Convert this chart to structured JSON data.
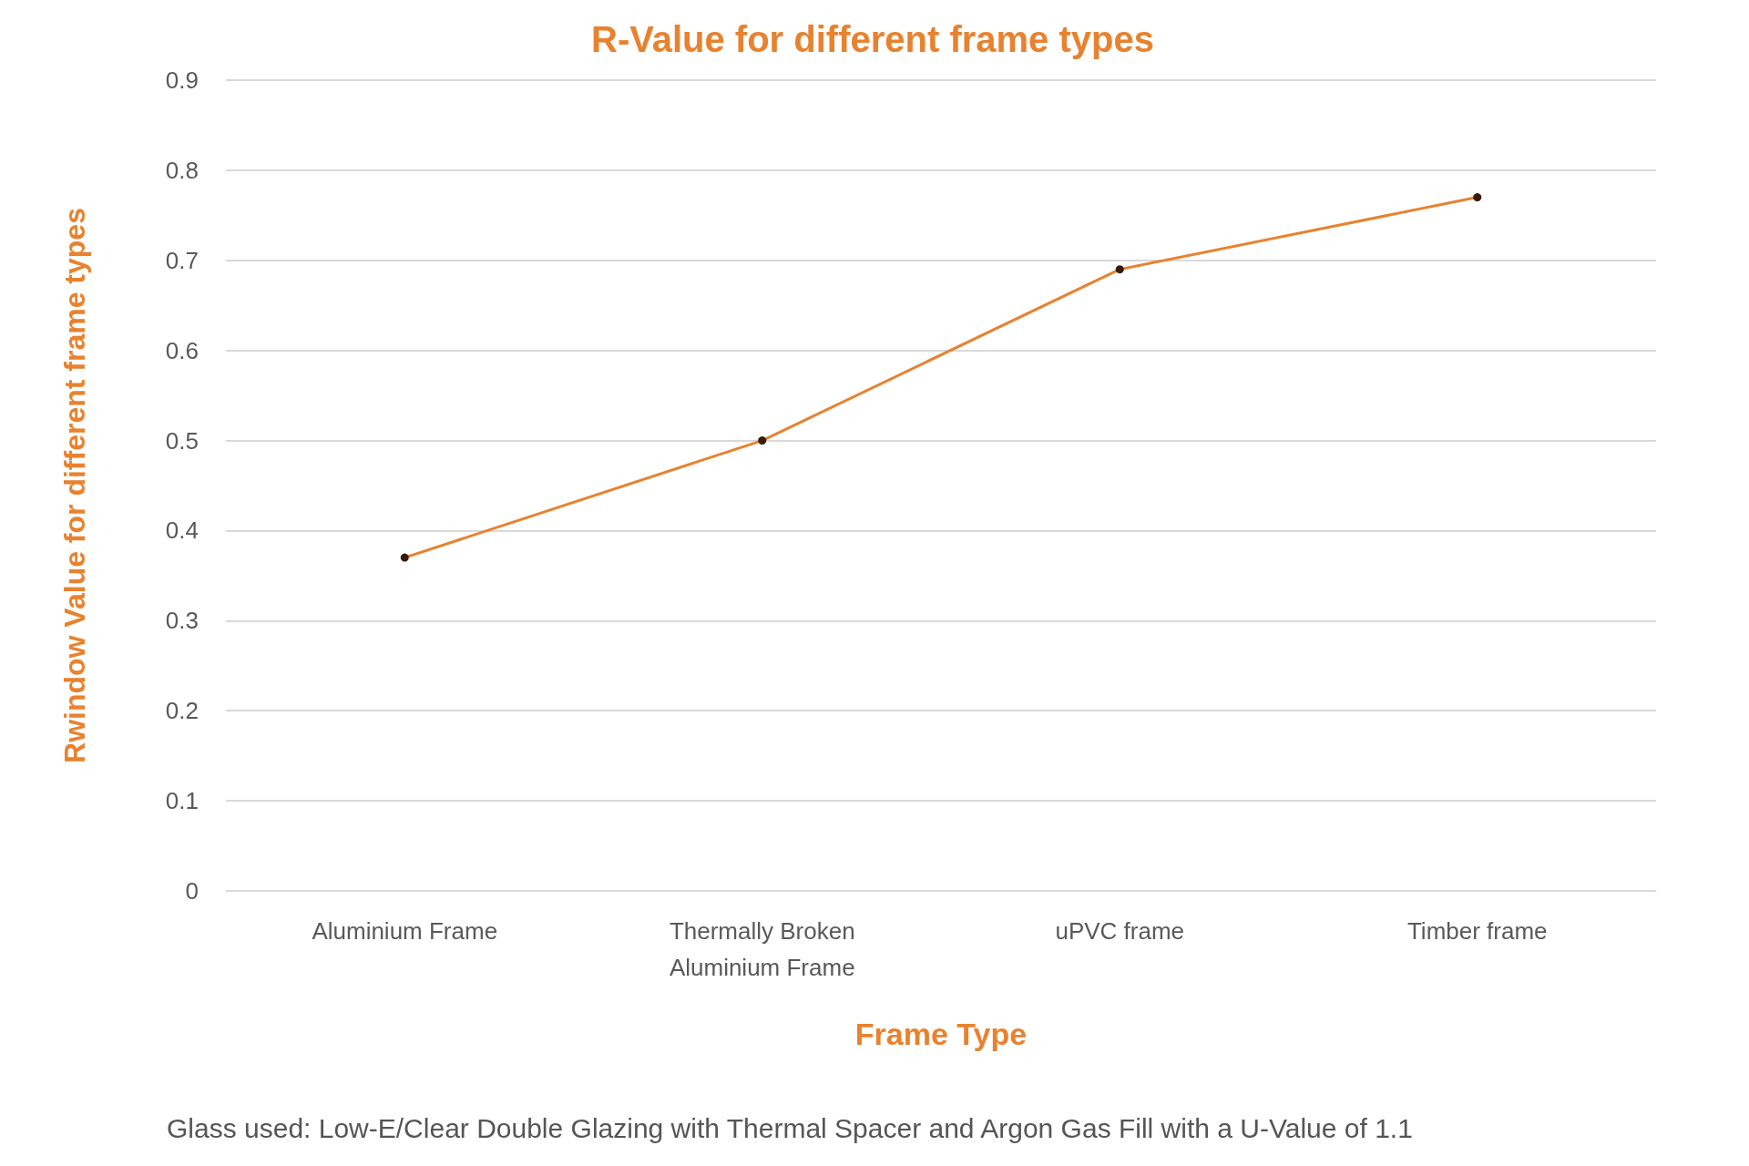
{
  "chart_data": {
    "type": "line",
    "title": "R-Value for different frame types",
    "xlabel": "Frame Type",
    "ylabel": "Rwindow Value for different frame types",
    "categories": [
      "Aluminium Frame",
      "Thermally Broken\nAluminium Frame",
      "uPVC frame",
      "Timber frame"
    ],
    "series": [
      {
        "color": "#e8822f",
        "values": [
          0.37,
          0.5,
          0.69,
          0.77
        ]
      }
    ],
    "ylim": [
      0,
      0.9
    ],
    "yticks": [
      0,
      0.1,
      0.2,
      0.3,
      0.4,
      0.5,
      0.6,
      0.7,
      0.8,
      0.9
    ],
    "grid": "y",
    "marker": "circle",
    "line_style": "solid",
    "annotations": [
      "Glass used: Low-E/Clear Double Glazing with Thermal Spacer and Argon Gas Fill with a U-Value of 1.1"
    ]
  }
}
